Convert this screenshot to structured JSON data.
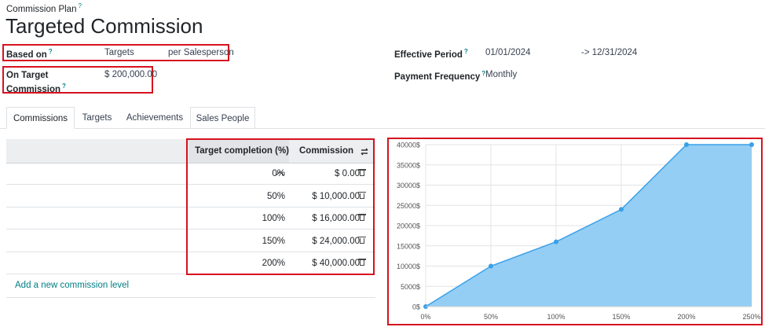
{
  "breadcrumb": {
    "label": "Commission Plan",
    "help": "?"
  },
  "title": "Targeted Commission",
  "fields": {
    "based_on": {
      "label": "Based on",
      "help": "?",
      "value1": "Targets",
      "value2": "per Salesperson"
    },
    "on_target": {
      "label_line1": "On Target",
      "label_line2": "Commission",
      "help": "?",
      "value": "$ 200,000.00"
    },
    "effective_period": {
      "label": "Effective Period",
      "help": "?",
      "start": "01/01/2024",
      "end": "-> 12/31/2024"
    },
    "payment_frequency": {
      "label": "Payment Frequency",
      "help": "?",
      "value": "Monthly"
    }
  },
  "tabs": [
    "Commissions",
    "Targets",
    "Achievements",
    "Sales People"
  ],
  "table": {
    "col_target": "Target completion (%)",
    "col_commission": "Commission",
    "rows": [
      {
        "target": "0%",
        "commission": "$ 0.00"
      },
      {
        "target": "50%",
        "commission": "$ 10,000.00"
      },
      {
        "target": "100%",
        "commission": "$ 16,000.00"
      },
      {
        "target": "150%",
        "commission": "$ 24,000.00"
      },
      {
        "target": "200%",
        "commission": "$ 40,000.00"
      }
    ],
    "add_line": "Add a new commission level"
  },
  "chart_data": {
    "type": "area",
    "x": [
      0,
      50,
      100,
      150,
      200,
      250
    ],
    "values": [
      0,
      10000,
      16000,
      24000,
      40000,
      40000
    ],
    "xlim": [
      0,
      250
    ],
    "ylim": [
      0,
      40000
    ],
    "x_ticks": [
      "0%",
      "50%",
      "100%",
      "150%",
      "200%",
      "250%"
    ],
    "y_ticks": [
      "0$",
      "5000$",
      "10000$",
      "15000$",
      "20000$",
      "25000$",
      "30000$",
      "35000$",
      "40000$"
    ],
    "grid": true,
    "colors": {
      "line": "#3aa0e8",
      "fill": "#8ecbf3"
    }
  }
}
